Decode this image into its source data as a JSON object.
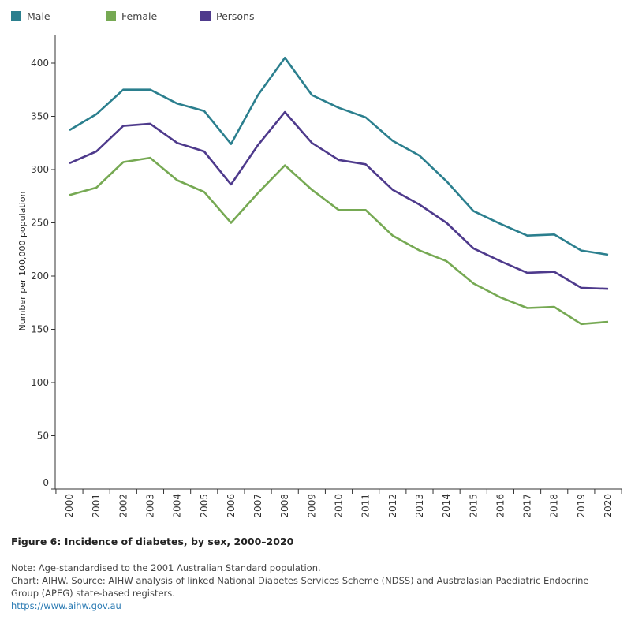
{
  "chart_data": {
    "type": "line",
    "title": "Figure 6: Incidence of diabetes, by sex, 2000–2020",
    "xlabel": "",
    "ylabel": "Number per 100,000 population",
    "x": [
      "2000",
      "2001",
      "2002",
      "2003",
      "2004",
      "2005",
      "2006",
      "2007",
      "2008",
      "2009",
      "2010",
      "2011",
      "2012",
      "2013",
      "2014",
      "2015",
      "2016",
      "2017",
      "2018",
      "2019",
      "2020"
    ],
    "y_ticks": [
      "0",
      "50",
      "100",
      "150",
      "200",
      "250",
      "300",
      "350",
      "400"
    ],
    "ylim": [
      0,
      420
    ],
    "legend_position": "top-left",
    "series": [
      {
        "name": "Male",
        "color": "#2b7f8e",
        "values": [
          337,
          352,
          375,
          375,
          362,
          355,
          324,
          370,
          405,
          370,
          358,
          349,
          327,
          313,
          289,
          261,
          249,
          238,
          239,
          224,
          220
        ]
      },
      {
        "name": "Female",
        "color": "#76a953",
        "values": [
          276,
          283,
          307,
          311,
          290,
          279,
          250,
          278,
          304,
          281,
          262,
          262,
          238,
          224,
          214,
          193,
          180,
          170,
          171,
          155,
          157
        ]
      },
      {
        "name": "Persons",
        "color": "#4e3a8c",
        "values": [
          306,
          317,
          341,
          343,
          325,
          317,
          286,
          323,
          354,
          325,
          309,
          305,
          281,
          267,
          250,
          226,
          214,
          203,
          204,
          189,
          188
        ]
      }
    ]
  },
  "notes": {
    "note": "Note: Age-standardised to the 2001 Australian Standard population.",
    "source": "Chart: AIHW.  Source: AIHW analysis of linked National Diabetes Services Scheme (NDSS) and Australasian Paediatric Endocrine Group (APEG) state-based registers.",
    "link": "https://www.aihw.gov.au"
  }
}
